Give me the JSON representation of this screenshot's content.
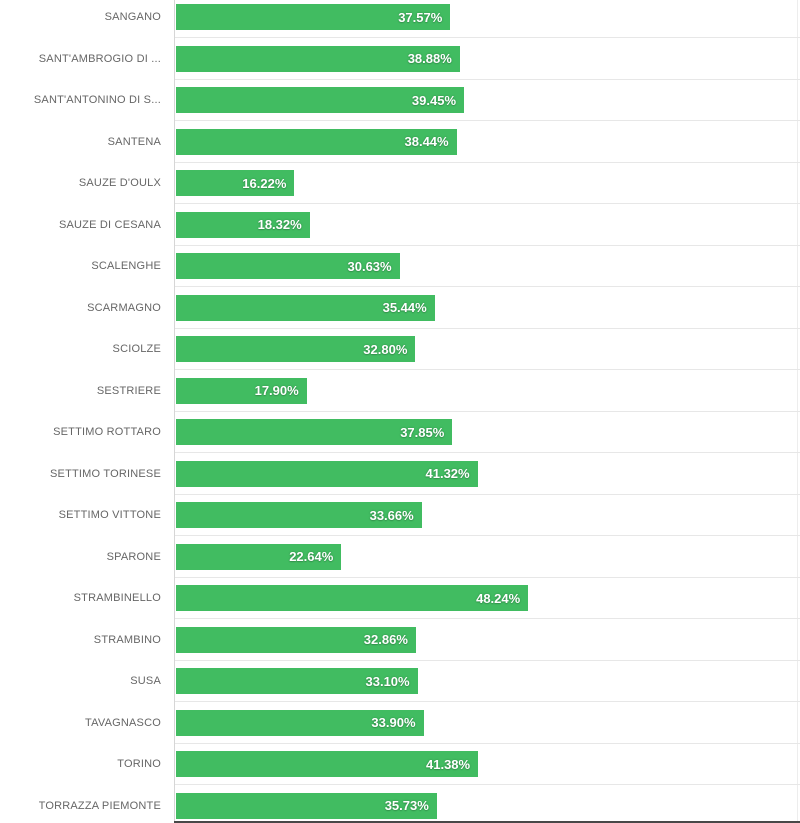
{
  "chart_data": {
    "type": "bar",
    "orientation": "horizontal",
    "title": "",
    "xlabel": "",
    "ylabel": "",
    "legend": "none",
    "grid": "row-separators-only",
    "value_axis_range_estimate": [
      0,
      85
    ],
    "categories": [
      "SANGANO",
      "SANT'AMBROGIO DI ...",
      "SANT'ANTONINO DI S...",
      "SANTENA",
      "SAUZE D'OULX",
      "SAUZE DI CESANA",
      "SCALENGHE",
      "SCARMAGNO",
      "SCIOLZE",
      "SESTRIERE",
      "SETTIMO ROTTARO",
      "SETTIMO TORINESE",
      "SETTIMO VITTONE",
      "SPARONE",
      "STRAMBINELLO",
      "STRAMBINO",
      "SUSA",
      "TAVAGNASCO",
      "TORINO",
      "TORRAZZA PIEMONTE"
    ],
    "values": [
      37.57,
      38.88,
      39.45,
      38.44,
      16.22,
      18.32,
      30.63,
      35.44,
      32.8,
      17.9,
      37.85,
      41.32,
      33.66,
      22.64,
      48.24,
      32.86,
      33.1,
      33.9,
      41.38,
      35.73
    ],
    "value_labels": [
      "37.57%",
      "38.88%",
      "39.45%",
      "38.44%",
      "16.22%",
      "18.32%",
      "30.63%",
      "35.44%",
      "32.80%",
      "17.90%",
      "37.85%",
      "41.32%",
      "33.66%",
      "22.64%",
      "48.24%",
      "32.86%",
      "33.10%",
      "33.90%",
      "41.38%",
      "35.73%"
    ],
    "colors": {
      "bar": "#41bc61",
      "value_label": "#ffffff",
      "category_label": "#666666",
      "row_separator": "#e7e7e7",
      "y_axis_line": "#d6d6d6",
      "bottom_axis_line": "#484848",
      "background": "#ffffff"
    }
  }
}
